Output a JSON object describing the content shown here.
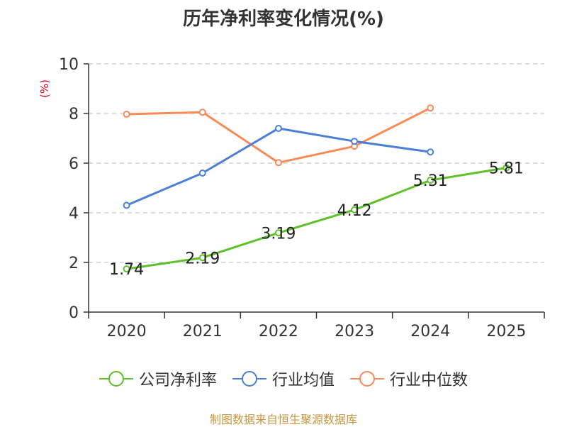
{
  "chart_data": {
    "type": "line",
    "title": "历年净利率变化情况(%)",
    "ylabel": "(%)",
    "xlabel": "",
    "categories": [
      "2020",
      "2021",
      "2022",
      "2023",
      "2024",
      "2025"
    ],
    "ylim": [
      0,
      10
    ],
    "yticks": [
      0,
      2,
      4,
      6,
      8,
      10
    ],
    "grid": true,
    "legend_position": "bottom",
    "series": [
      {
        "name": "公司净利率",
        "color": "#5fc129",
        "values": [
          1.74,
          2.19,
          3.19,
          4.12,
          5.31,
          5.81
        ],
        "labels": [
          "1.74",
          "2.19",
          "3.19",
          "4.12",
          "5.31",
          "5.81"
        ]
      },
      {
        "name": "行业均值",
        "color": "#4c7fd8",
        "values": [
          4.3,
          5.6,
          7.4,
          6.88,
          6.45,
          null
        ]
      },
      {
        "name": "行业中位数",
        "color": "#f78a57",
        "values": [
          7.97,
          8.05,
          6.02,
          6.68,
          8.22,
          null
        ]
      }
    ]
  },
  "source": "制图数据来自恒生聚源数据库"
}
